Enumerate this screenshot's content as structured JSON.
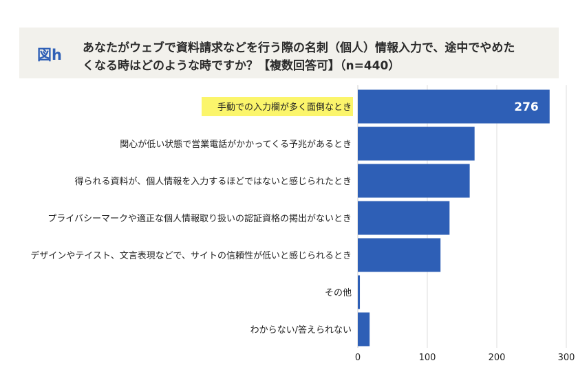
{
  "header": {
    "figure_label": "図h",
    "title_line1": "あなたがウェブで資料請求などを行う際の名刺（個人）情報入力で、途中でやめた",
    "title_line2": "くなる時はどのような時ですか？【複数回答可】（n=440）"
  },
  "chart_data": {
    "type": "bar",
    "orientation": "horizontal",
    "title": "あなたがウェブで資料請求などを行う際の名刺（個人）情報入力で、途中でやめたくなる時はどのような時ですか？【複数回答可】（n=440）",
    "categories": [
      "手動での入力欄が多く面倒なとき",
      "関心が低い状態で営業電話がかかってくる予兆があるとき",
      "得られる資料が、個人情報を入力するほどではないと感じられたとき",
      "プライバシーマークや適正な個人情報取り扱いの認証資格の掲出がないとき",
      "デザインやテイスト、文言表現などで、サイトの信頼性が低いと感じられるとき",
      "その他",
      "わからない/答えられない"
    ],
    "values": [
      276,
      168,
      161,
      132,
      119,
      3,
      17
    ],
    "data_labels": [
      "276",
      "",
      "",
      "",
      "",
      "",
      ""
    ],
    "highlight_index": 0,
    "xlim": [
      0,
      300
    ],
    "xticks": [
      "0",
      "100",
      "200",
      "300"
    ],
    "grid": true,
    "colors": {
      "bar": "#2e5fb6",
      "highlight_bg": "#fbf56b",
      "grid": "#dddddd"
    }
  }
}
